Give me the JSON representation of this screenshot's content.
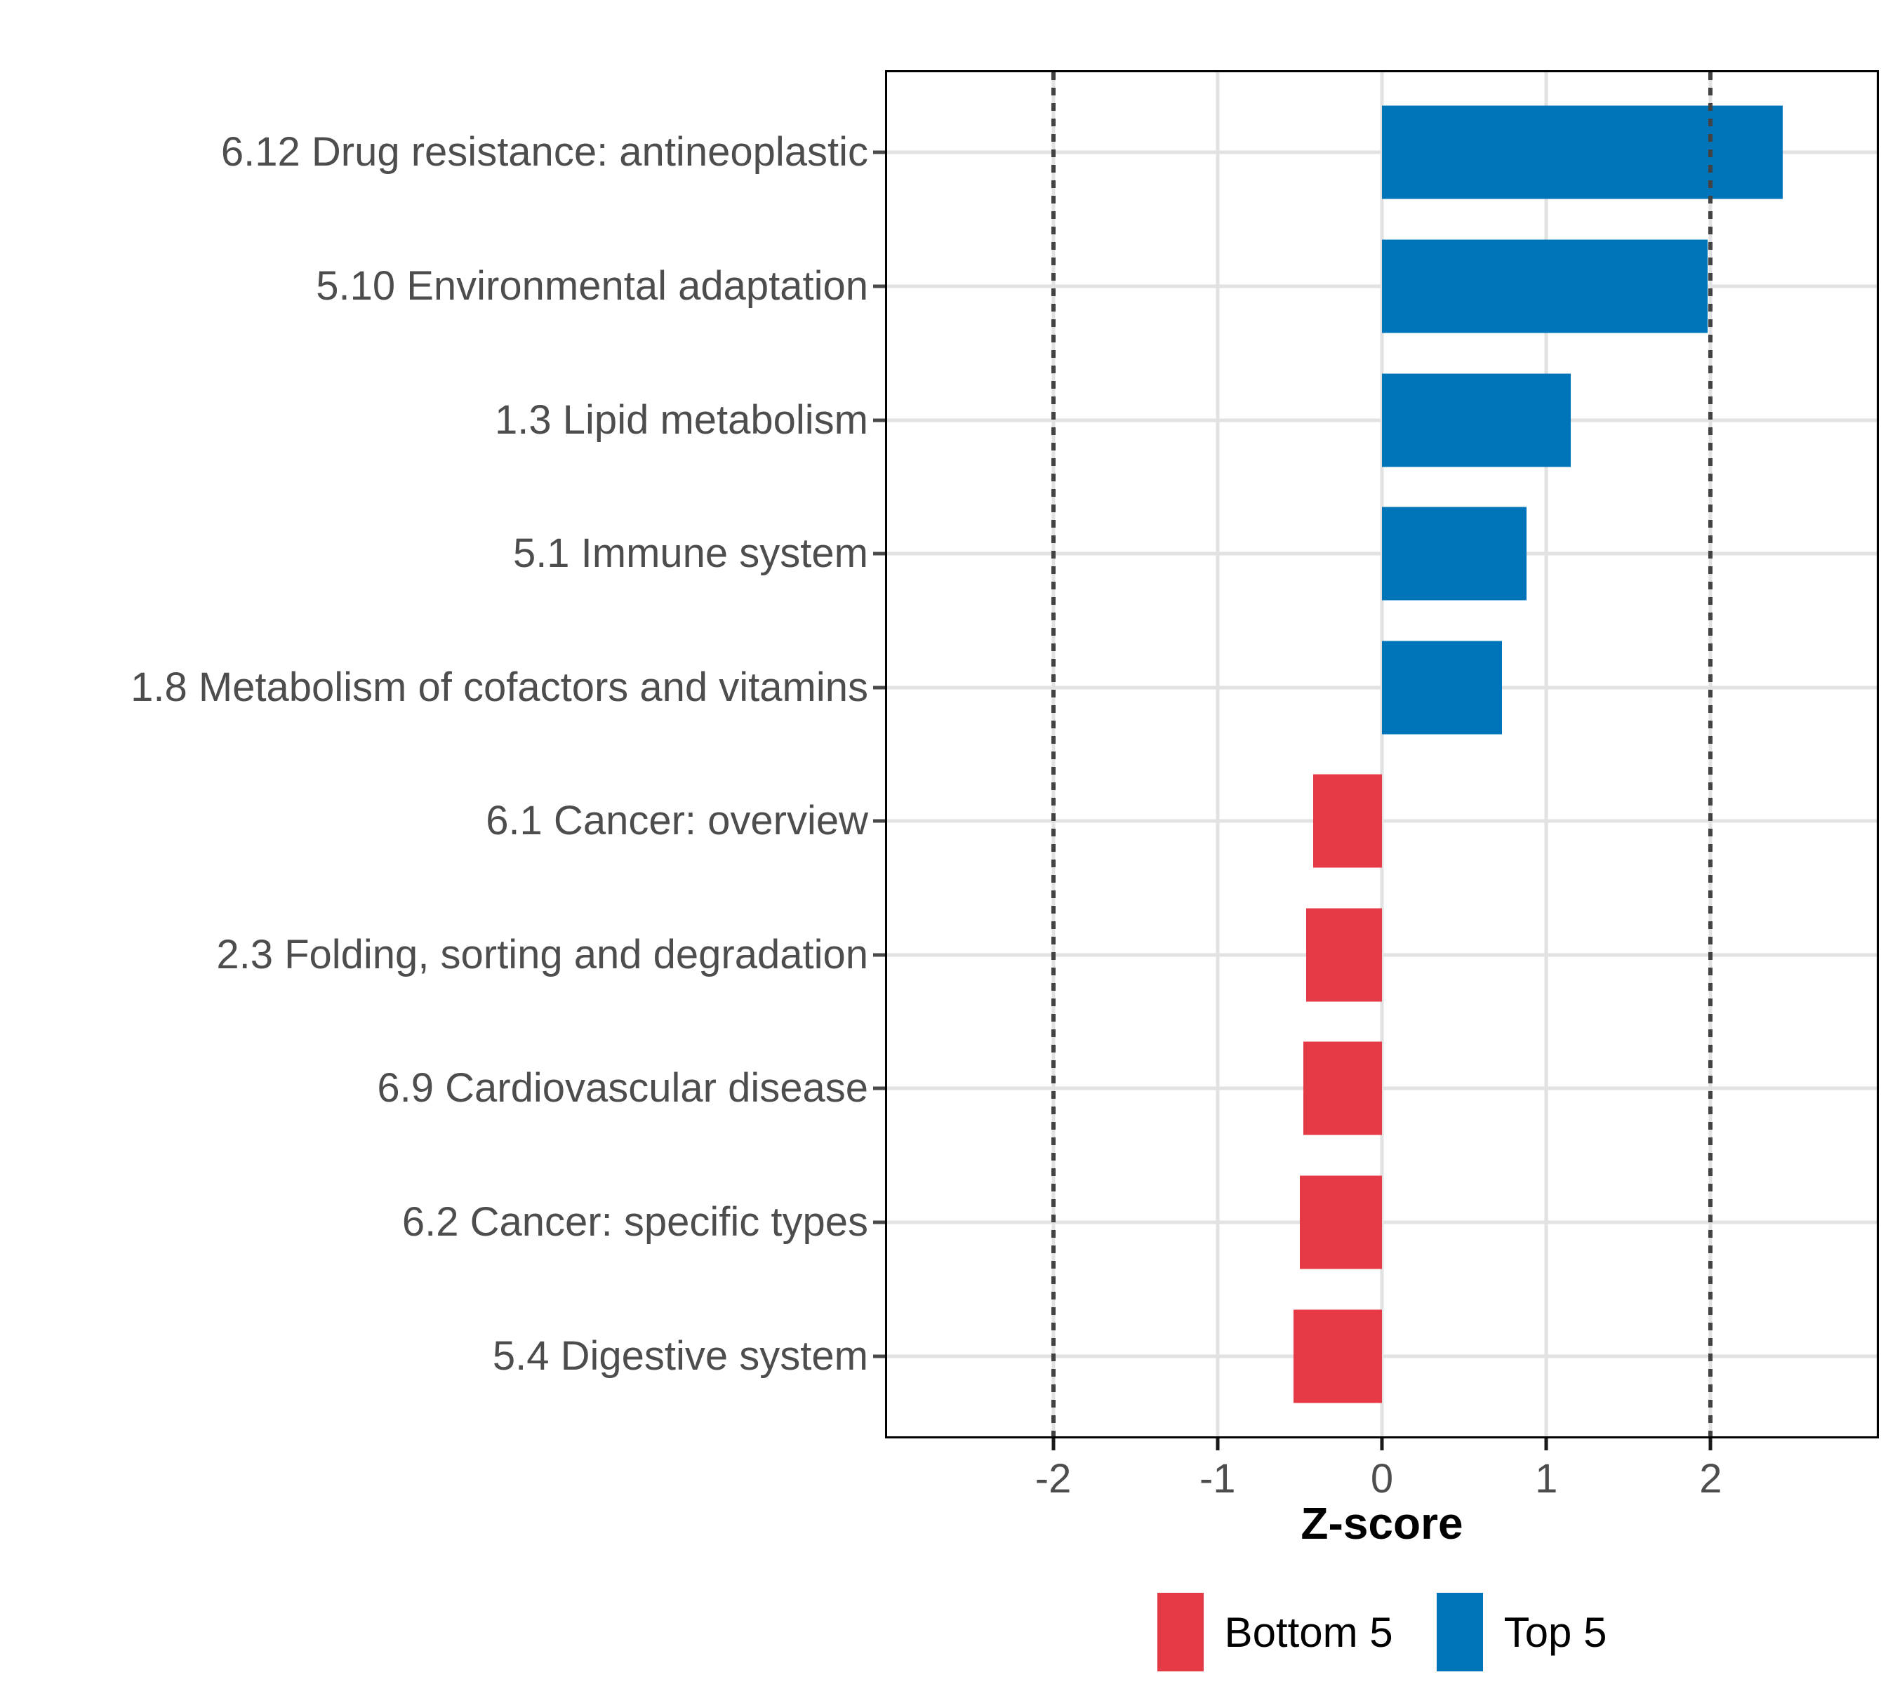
{
  "chart_data": {
    "type": "bar",
    "orientation": "horizontal",
    "title": "",
    "xlabel": "Z-score",
    "ylabel": "",
    "categories": [
      "6.12 Drug resistance: antineoplastic",
      "5.10 Environmental adaptation",
      "1.3 Lipid metabolism",
      "5.1 Immune system",
      "1.8 Metabolism of cofactors and vitamins",
      "6.1 Cancer: overview",
      "2.3 Folding, sorting and degradation",
      "6.9 Cardiovascular disease",
      "6.2 Cancer: specific types",
      "5.4 Digestive system"
    ],
    "values": [
      2.44,
      1.98,
      1.15,
      0.88,
      0.73,
      -0.42,
      -0.46,
      -0.48,
      -0.5,
      -0.54
    ],
    "groups": [
      "Top 5",
      "Top 5",
      "Top 5",
      "Top 5",
      "Top 5",
      "Bottom 5",
      "Bottom 5",
      "Bottom 5",
      "Bottom 5",
      "Bottom 5"
    ],
    "group_colors": {
      "Top 5": "#0074B8",
      "Bottom 5": "#E63946"
    },
    "xlim": [
      -3.01,
      3.01
    ],
    "x_ticks": [
      -2,
      -1,
      0,
      1,
      2
    ],
    "x_tick_labels": [
      "-2",
      "-1",
      "0",
      "1",
      "2"
    ],
    "reference_lines": {
      "values": [
        -2,
        2
      ],
      "style": "dotted",
      "color": "#424242"
    },
    "grid": {
      "show_major": true,
      "color": "#E2E2E2",
      "horizontal_at_category_centers": true
    },
    "bar_width_fraction": 0.7,
    "category_outer_padding": 0.6,
    "legend": {
      "position": "bottom",
      "entries": [
        {
          "label": "Bottom 5",
          "color": "#E63946"
        },
        {
          "label": "Top 5",
          "color": "#0074B8"
        }
      ]
    },
    "style": {
      "axis_text_color": "#4D4D4D",
      "axis_title_color": "#000000",
      "panel_border_color": "#000000",
      "background": "#FFFFFF"
    }
  }
}
